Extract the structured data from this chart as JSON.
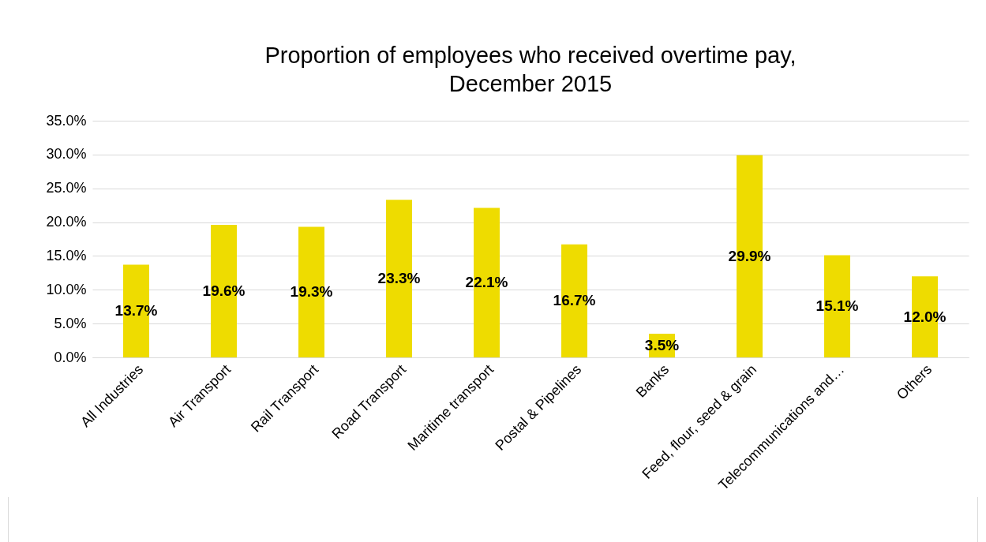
{
  "chart_data": {
    "type": "bar",
    "title": "Proportion of employees who received overtime pay,\nDecember 2015",
    "categories": [
      "All Industries",
      "Air Transport",
      "Rail Transport",
      "Road Transport",
      "Maritime transport",
      "Postal & Pipelines",
      "Banks",
      "Feed, flour, seed & grain",
      "Telecommunications and…",
      "Others"
    ],
    "values": [
      13.7,
      19.6,
      19.3,
      23.3,
      22.1,
      16.7,
      3.5,
      29.9,
      15.1,
      12.0
    ],
    "value_labels": [
      "13.7%",
      "19.6%",
      "19.3%",
      "23.3%",
      "22.1%",
      "16.7%",
      "3.5%",
      "29.9%",
      "15.1%",
      "12.0%"
    ],
    "color": "#eedc00",
    "ylim": [
      0,
      35
    ],
    "yticks": [
      {
        "value": 0,
        "label": "0.0%"
      },
      {
        "value": 5,
        "label": "5.0%"
      },
      {
        "value": 10,
        "label": "10.0%"
      },
      {
        "value": 15,
        "label": "15.0%"
      },
      {
        "value": 20,
        "label": "20.0%"
      },
      {
        "value": 25,
        "label": "25.0%"
      },
      {
        "value": 30,
        "label": "30.0%"
      },
      {
        "value": 35,
        "label": "35.0%"
      }
    ],
    "grid": "y"
  }
}
